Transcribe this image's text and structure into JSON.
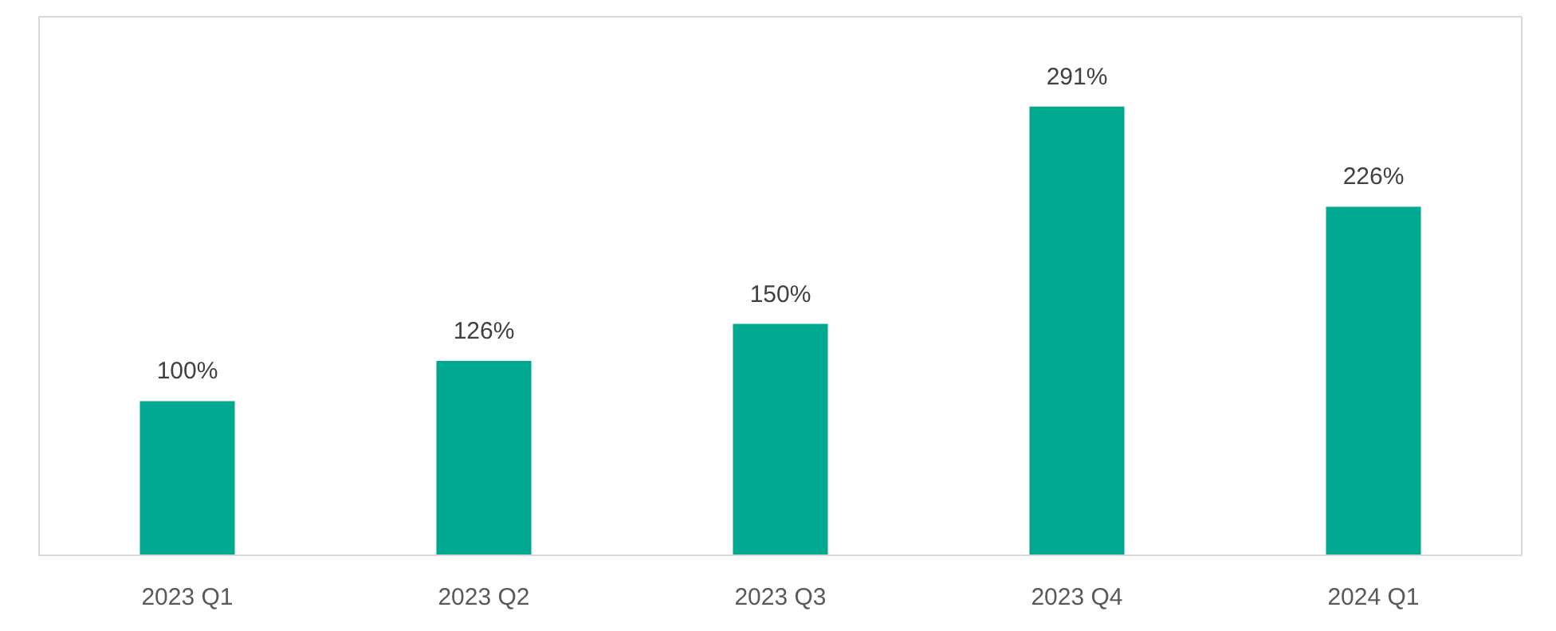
{
  "chart_data": {
    "type": "bar",
    "categories": [
      "2023 Q1",
      "2023 Q2",
      "2023 Q3",
      "2023 Q4",
      "2024 Q1"
    ],
    "values": [
      100,
      126,
      150,
      291,
      226
    ],
    "value_labels": [
      "100%",
      "126%",
      "150%",
      "291%",
      "226%"
    ],
    "color": "#00a88f",
    "grid": false
  }
}
